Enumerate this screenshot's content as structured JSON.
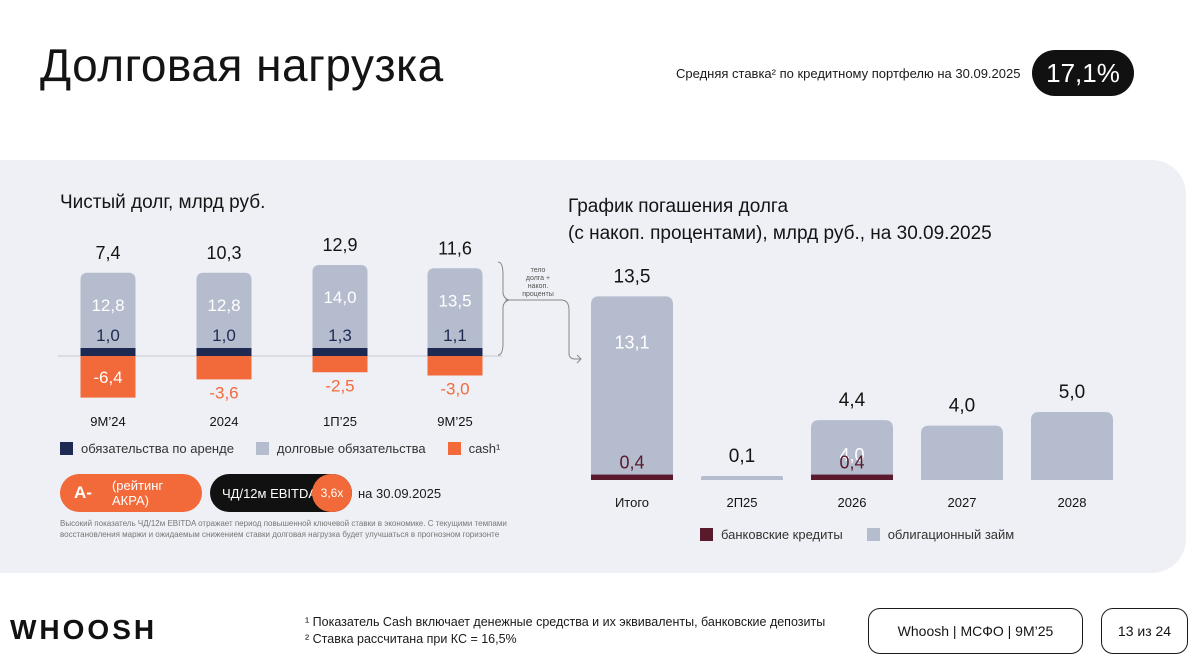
{
  "header": {
    "title": "Долговая нагрузка",
    "rate_label": "Средняя ставка² по кредитному портфелю на 30.09.2025",
    "rate_value": "17,1%"
  },
  "net_debt": {
    "title": "Чистый долг, млрд руб.",
    "annotation": [
      "тело",
      "долга +",
      "накоп.",
      "проценты"
    ],
    "legend": {
      "lease": "обязательства по аренде",
      "debt": "долговые обязательства",
      "cash": "cash¹"
    },
    "colors": {
      "lease": "#1e2a52",
      "debt": "#b5bccd",
      "cash": "#f26a3a",
      "label_light": "#ffffff",
      "label_cash": "#f26a3a"
    }
  },
  "repayment": {
    "title_line1": "График погашения долга",
    "title_line2": "(с накоп. процентами), млрд руб., на 30.09.2025",
    "legend": {
      "bank": "банковские кредиты",
      "bond": "облигационный займ"
    },
    "colors": {
      "bank": "#5a1a2e",
      "bond": "#b5bccd"
    }
  },
  "rating": {
    "badge": "A-",
    "agency": "(рейтинг АКРА)",
    "metric_label": "ЧД/12м EBITDA",
    "metric_value": "3,6x",
    "date": "на 30.09.2025"
  },
  "note": "Высокий показатель ЧД/12м EBITDA отражает период повышенной ключевой ставки в экономике. С текущими темпами восстановления маржи и ожидаемым снижением ставки долговая нагрузка будет улучшаться в прогнозном горизонте",
  "footer": {
    "logo": "WHOOSH",
    "footnote1": "¹ Показатель Cash включает денежные средства и их эквиваленты, банковские депозиты",
    "footnote2": "² Ставка рассчитана при КС = 16,5%",
    "report": "Whoosh | МСФО | 9М’25",
    "page": "13 из 24"
  },
  "chart_data": [
    {
      "type": "bar",
      "stacked": true,
      "title": "Чистый долг, млрд руб.",
      "categories": [
        "9М’24",
        "2024",
        "1П’25",
        "9М’25"
      ],
      "totals": [
        7.4,
        10.3,
        12.9,
        11.6
      ],
      "total_labels": [
        "7,4",
        "10,3",
        "12,9",
        "11,6"
      ],
      "series": [
        {
          "name": "долговые обязательства",
          "key": "debt",
          "values": [
            12.8,
            12.8,
            14.0,
            13.5
          ],
          "labels": [
            "12,8",
            "12,8",
            "14,0",
            "13,5"
          ]
        },
        {
          "name": "обязательства по аренде",
          "key": "lease",
          "values": [
            1.0,
            1.0,
            1.3,
            1.1
          ],
          "labels": [
            "1,0",
            "1,0",
            "1,3",
            "1,1"
          ]
        },
        {
          "name": "cash¹",
          "key": "cash",
          "values": [
            -6.4,
            -3.6,
            -2.5,
            -3.0
          ],
          "labels": [
            "-6,4",
            "-3,6",
            "-2,5",
            "-3,0"
          ]
        }
      ]
    },
    {
      "type": "bar",
      "stacked": true,
      "title": "График погашения долга (с накоп. процентами), млрд руб., на 30.09.2025",
      "categories": [
        "Итого",
        "2П25",
        "2026",
        "2027",
        "2028"
      ],
      "totals": [
        13.5,
        0.1,
        4.4,
        4.0,
        5.0
      ],
      "total_labels": [
        "13,5",
        "0,1",
        "4,4",
        "4,0",
        "5,0"
      ],
      "series": [
        {
          "name": "банковские кредиты",
          "key": "bank",
          "values": [
            0.4,
            0,
            0.4,
            0,
            0
          ],
          "labels": [
            "0,4",
            "",
            "0,4",
            "",
            ""
          ]
        },
        {
          "name": "облигационный займ",
          "key": "bond",
          "values": [
            13.1,
            0.1,
            4.0,
            4.0,
            5.0
          ],
          "labels": [
            "13,1",
            "",
            "4,0",
            "",
            ""
          ]
        }
      ]
    }
  ]
}
